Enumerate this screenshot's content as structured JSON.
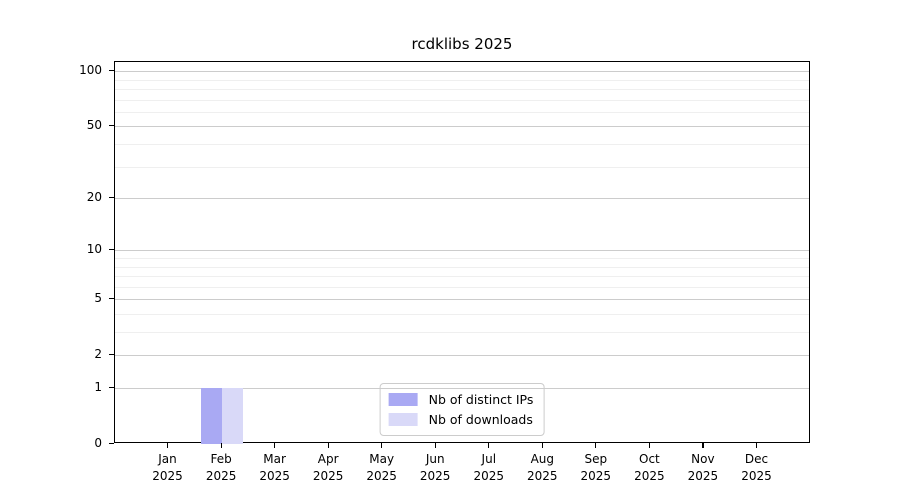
{
  "title": "rcdklibs 2025",
  "colors": {
    "distinct_ips_bar": "#a9a9f3",
    "downloads_bar": "#d9d9f8",
    "grid_major": "#cccccc",
    "grid_minor": "#efefef",
    "axis": "#000000",
    "legend_border": "#cccccc",
    "background": "#ffffff"
  },
  "chart_data": {
    "type": "bar",
    "title": "rcdklibs 2025",
    "categories": [
      "Jan 2025",
      "Feb 2025",
      "Mar 2025",
      "Apr 2025",
      "May 2025",
      "Jun 2025",
      "Jul 2025",
      "Aug 2025",
      "Sep 2025",
      "Oct 2025",
      "Nov 2025",
      "Dec 2025"
    ],
    "series": [
      {
        "name": "Nb of distinct IPs",
        "color": "#a9a9f3",
        "values": [
          0,
          1,
          0,
          0,
          0,
          0,
          0,
          0,
          0,
          0,
          0,
          0
        ]
      },
      {
        "name": "Nb of downloads",
        "color": "#d9d9f8",
        "values": [
          0,
          1,
          0,
          0,
          0,
          0,
          0,
          0,
          0,
          0,
          0,
          0
        ]
      }
    ],
    "xlabel": "",
    "ylabel": "",
    "yscale": "log1p",
    "ylim": [
      0,
      112
    ],
    "y_major_ticks": [
      0,
      1,
      2,
      5,
      10,
      20,
      50,
      100
    ],
    "y_minor_ticks": [
      3,
      4,
      6,
      7,
      8,
      9,
      30,
      40,
      60,
      70,
      80,
      90
    ],
    "grid": true,
    "legend_position": "lower center"
  }
}
